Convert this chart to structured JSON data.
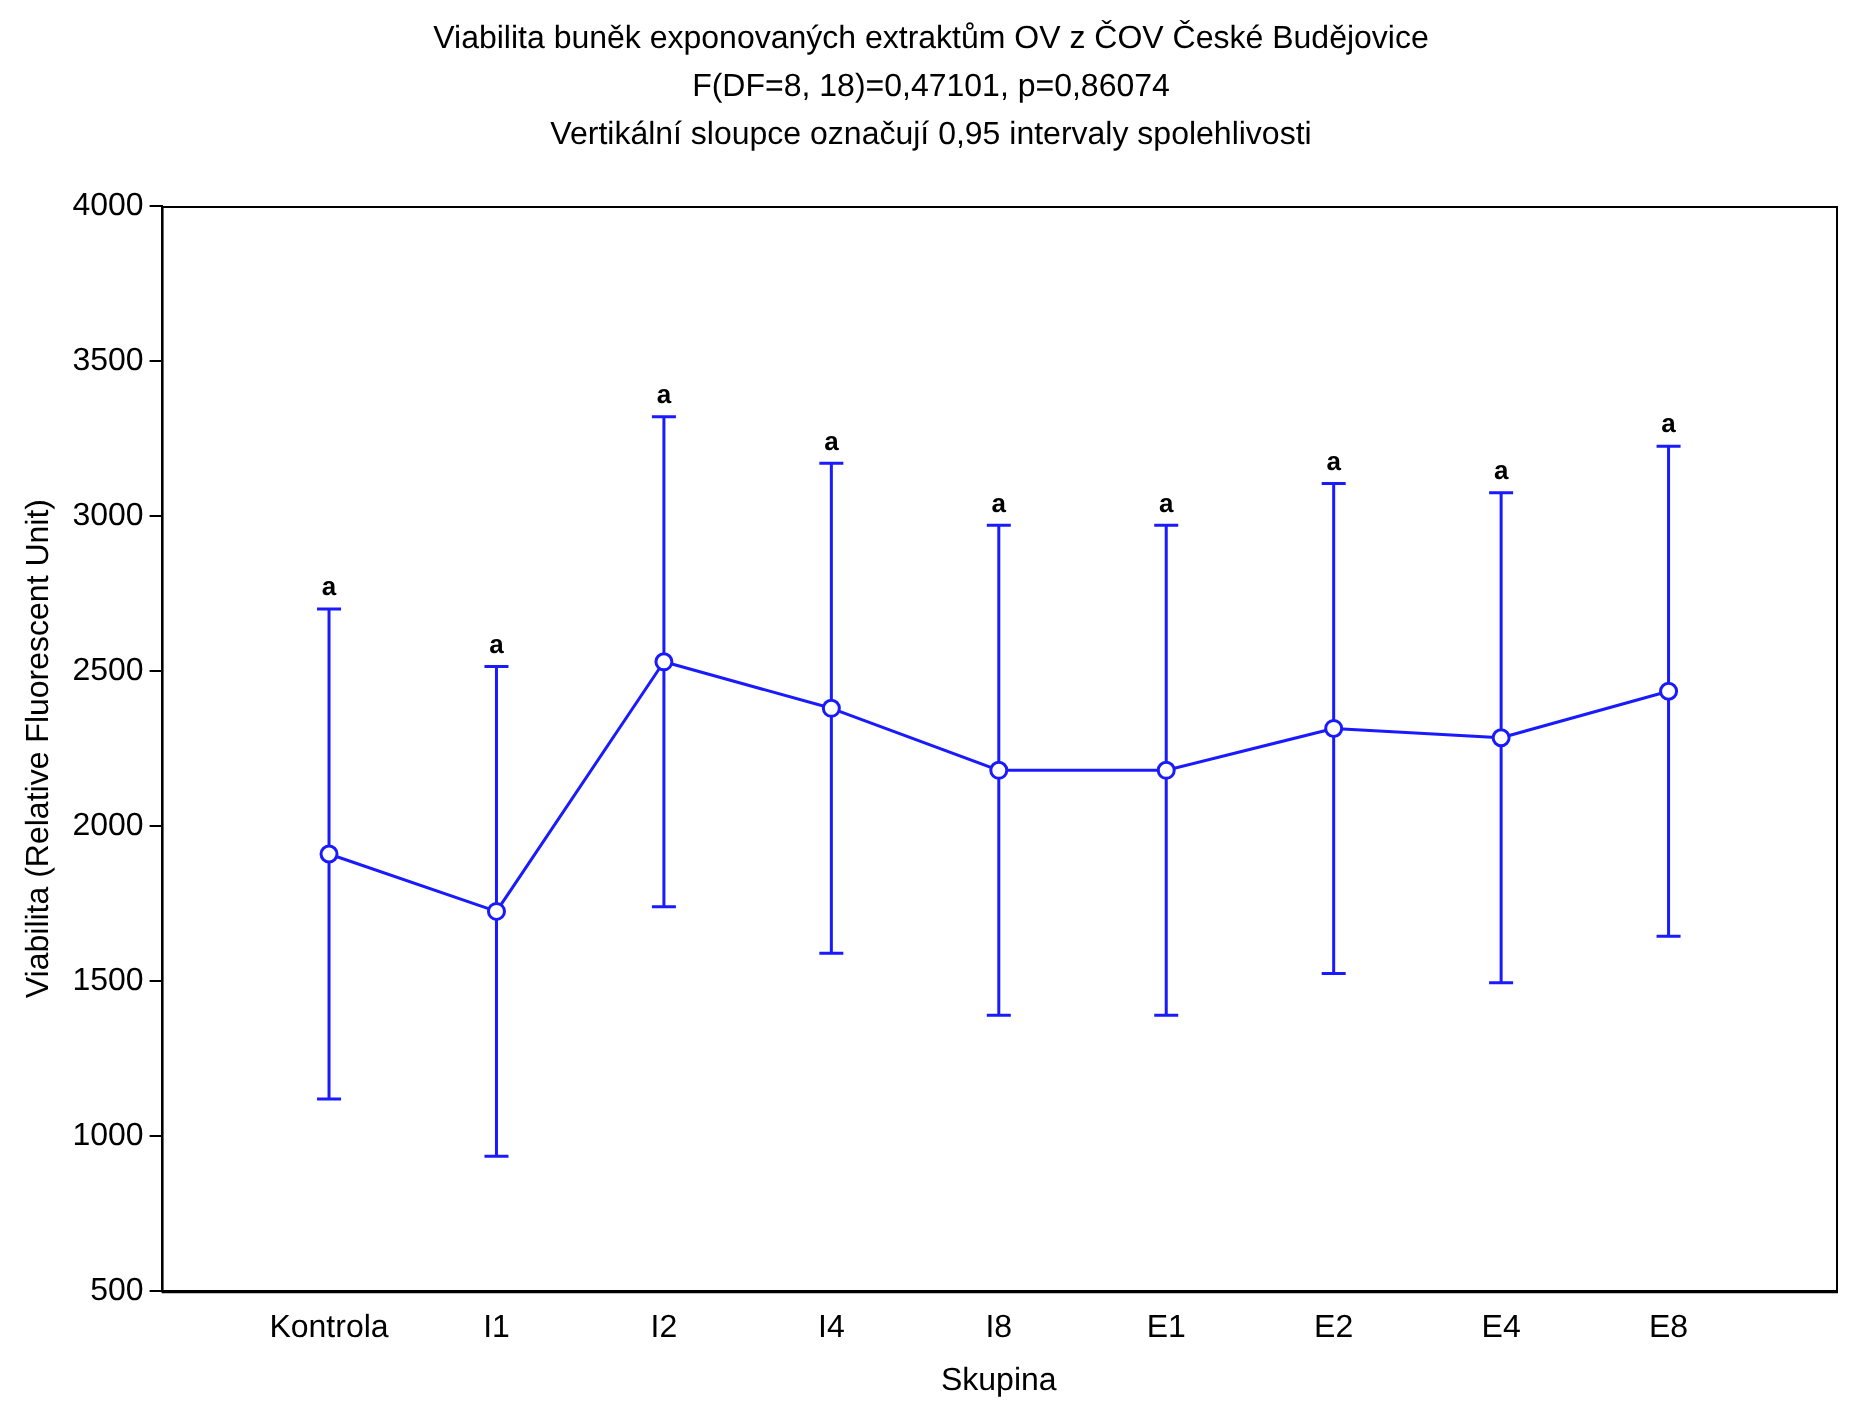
{
  "chart_data": {
    "type": "line",
    "title": "Viabilita buněk exponovaných extraktům OV z ČOV České Budějovice",
    "subtitle": "F(DF=8, 18)=0,47101, p=0,86074",
    "xlabel": "Skupina",
    "ylabel": "Viabilita (Relative Fluorescent Unit)",
    "categories": [
      "Kontrola",
      "I1",
      "I2",
      "I4",
      "I8",
      "E1",
      "E2",
      "E4",
      "E8"
    ],
    "series": [
      {
        "color": "#1a1aff",
        "values": [
          1910,
          1725,
          2530,
          2380,
          2180,
          2180,
          2315,
          2285,
          2435
        ],
        "errors": [
          790,
          790,
          790,
          790,
          790,
          790,
          790,
          790,
          790
        ]
      }
    ],
    "ylim": [
      500,
      4000
    ],
    "yticks": [
      500,
      1000,
      1500,
      2000,
      2500,
      3000,
      3500,
      4000
    ],
    "grid": false,
    "legend": false,
    "marker": "circle",
    "line_style": "solid",
    "annotations": [
      "Vertikální sloupce označují 0,95 intervaly spolehlivosti",
      {
        "text": "a",
        "x": "Kontrola",
        "y": 2700
      },
      {
        "text": "a",
        "x": "I1",
        "y": 2515
      },
      {
        "text": "a",
        "x": "I2",
        "y": 3320
      },
      {
        "text": "a",
        "x": "I4",
        "y": 3170
      },
      {
        "text": "a",
        "x": "I8",
        "y": 2970
      },
      {
        "text": "a",
        "x": "E1",
        "y": 2970
      },
      {
        "text": "a",
        "x": "E2",
        "y": 3105
      },
      {
        "text": "a",
        "x": "E4",
        "y": 3075
      },
      {
        "text": "a",
        "x": "E8",
        "y": 3225
      }
    ]
  }
}
